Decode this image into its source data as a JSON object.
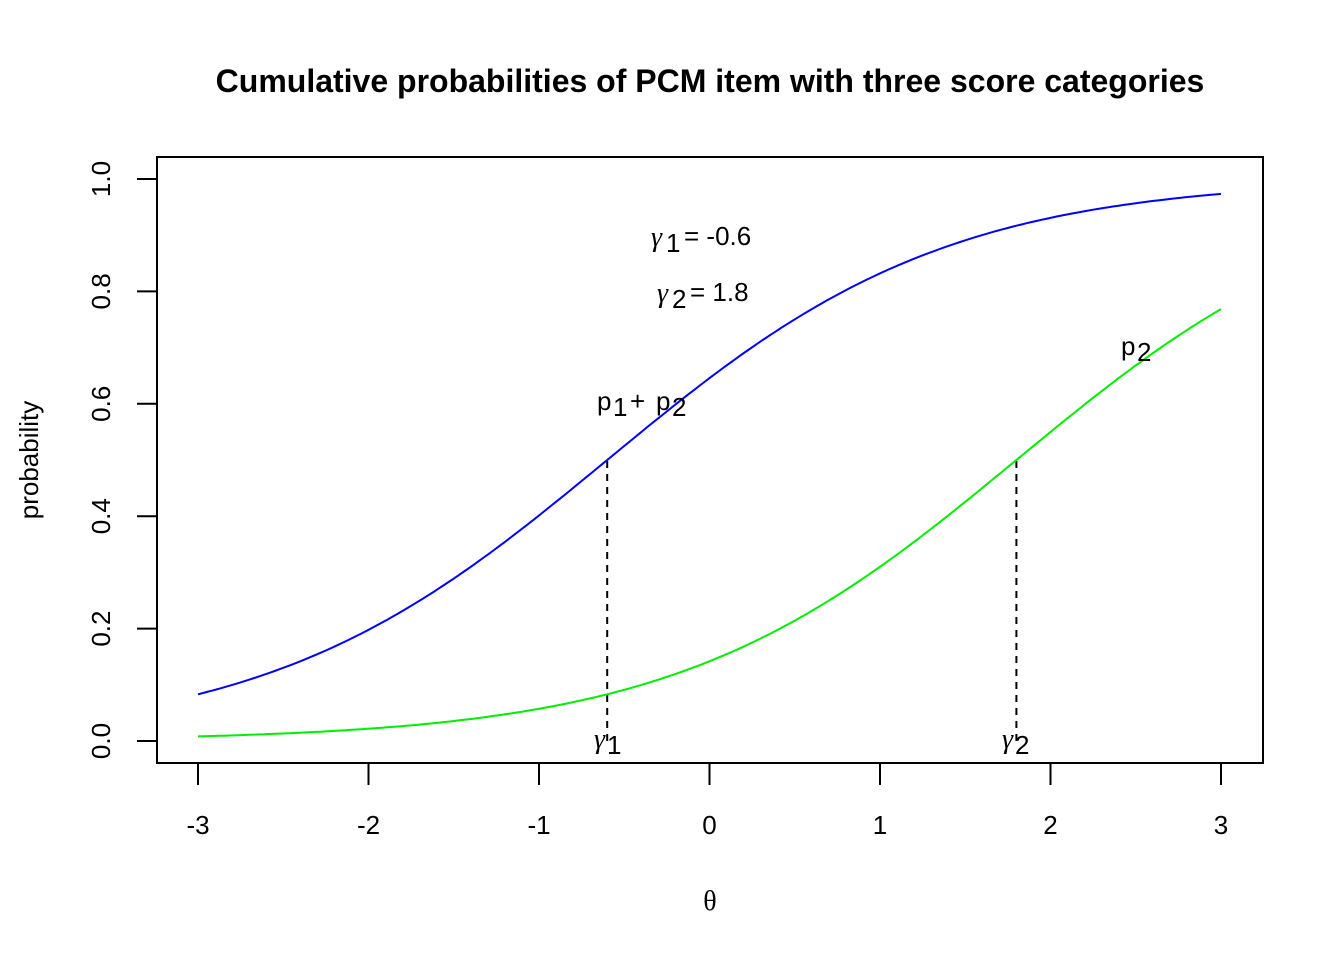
{
  "chart_data": {
    "type": "line",
    "title": "Cumulative probabilities of PCM item with three score categories",
    "xlabel": "θ",
    "ylabel": "probability",
    "xlim": [
      -3,
      3
    ],
    "ylim": [
      0,
      1
    ],
    "xticks": [
      "-3",
      "-2",
      "-1",
      "0",
      "1",
      "2",
      "3"
    ],
    "yticks": [
      "0.0",
      "0.2",
      "0.4",
      "0.6",
      "0.8",
      "1.0"
    ],
    "grid": false,
    "series": [
      {
        "name": "p1 + p2",
        "color": "#0000ff",
        "location": -0.6,
        "x": [
          -3,
          -2.5,
          -2,
          -1.5,
          -1,
          -0.6,
          0,
          0.5,
          1,
          1.5,
          2,
          2.5,
          3
        ],
        "y": [
          0.083,
          0.13,
          0.198,
          0.289,
          0.401,
          0.5,
          0.646,
          0.75,
          0.832,
          0.891,
          0.931,
          0.957,
          0.973
        ]
      },
      {
        "name": "p2",
        "color": "#00ee00",
        "location": 1.8,
        "x": [
          -3,
          -2.5,
          -2,
          -1.5,
          -1,
          -0.6,
          0,
          0.5,
          1,
          1.5,
          1.8,
          2,
          2.5,
          3
        ],
        "y": [
          0.008,
          0.013,
          0.022,
          0.036,
          0.057,
          0.083,
          0.142,
          0.215,
          0.31,
          0.426,
          0.5,
          0.55,
          0.668,
          0.769
        ]
      }
    ],
    "annotations": [
      {
        "text": "γ1 = -0.6",
        "x": 0.0,
        "y": 0.9
      },
      {
        "text": "γ2 = 1.8",
        "x": 0.0,
        "y": 0.8
      },
      {
        "text": "p1 + p2",
        "x": -0.4,
        "y": 0.6
      },
      {
        "text": "p2",
        "x": 2.5,
        "y": 0.7
      },
      {
        "text": "γ1",
        "x": -0.6,
        "y": 0.0
      },
      {
        "text": "γ2",
        "x": 1.8,
        "y": 0.0
      }
    ],
    "reference_lines": [
      {
        "type": "vertical-dashed",
        "x": -0.6,
        "y_from": 0,
        "y_to": 0.5
      },
      {
        "type": "vertical-dashed",
        "x": 1.8,
        "y_from": 0,
        "y_to": 0.5
      }
    ]
  },
  "labels": {
    "gamma1_eq": "= -0.6",
    "gamma2_eq": "= 1.8",
    "gamma": "γ",
    "sub1": "1",
    "sub2": "2",
    "p": "p",
    "plus": "+"
  }
}
